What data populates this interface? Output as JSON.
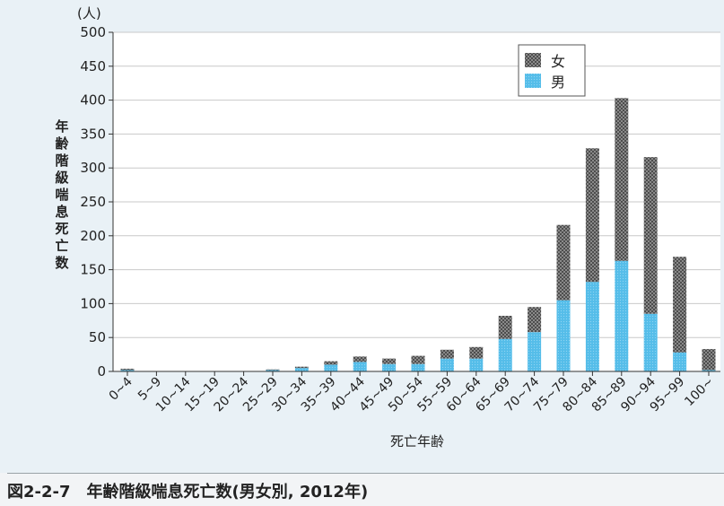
{
  "caption": "図2-2-7　年齢階級喘息死亡数(男女別, 2012年)",
  "chart_data": {
    "type": "bar",
    "stacked": true,
    "title": "",
    "xlabel": "死亡年齢",
    "ylabel": "年齢階級喘息死亡数",
    "yunit": "(人)",
    "ylim": [
      0,
      500
    ],
    "yticks": [
      0,
      50,
      100,
      150,
      200,
      250,
      300,
      350,
      400,
      450,
      500
    ],
    "grid": true,
    "legend_position": "top-right",
    "categories": [
      "0~4",
      "5~9",
      "10~14",
      "15~19",
      "20~24",
      "25~29",
      "30~34",
      "35~39",
      "40~44",
      "45~49",
      "50~54",
      "55~59",
      "60~64",
      "65~69",
      "70~74",
      "75~79",
      "80~84",
      "85~89",
      "90~94",
      "95~99",
      "100~"
    ],
    "series": [
      {
        "name": "男",
        "color": "#5bc0ea",
        "values": [
          2,
          0,
          0,
          0,
          0,
          2,
          5,
          10,
          14,
          11,
          11,
          19,
          19,
          48,
          58,
          105,
          132,
          163,
          85,
          28,
          2
        ]
      },
      {
        "name": "女",
        "color": "#6e6e6e",
        "values": [
          2,
          0,
          0,
          0,
          0,
          1,
          2,
          5,
          8,
          8,
          12,
          13,
          17,
          34,
          37,
          111,
          197,
          240,
          231,
          141,
          31
        ]
      }
    ],
    "legend": [
      {
        "label": "女",
        "icon": "checker-swatch-icon",
        "color": "#6e6e6e"
      },
      {
        "label": "男",
        "icon": "dotted-swatch-icon",
        "color": "#5bc0ea"
      }
    ]
  }
}
